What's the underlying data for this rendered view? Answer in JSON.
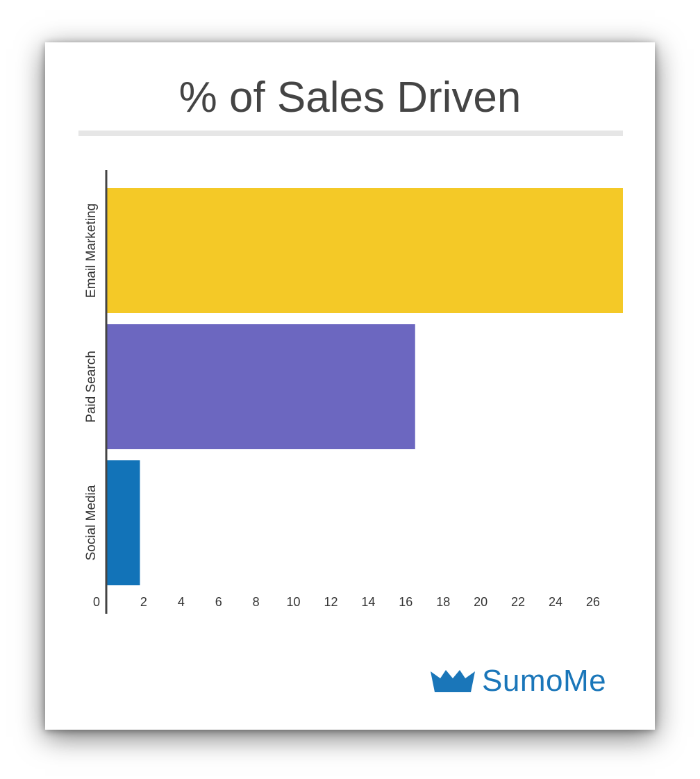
{
  "chart_data": {
    "type": "bar",
    "orientation": "horizontal",
    "title": "% of Sales Driven",
    "categories": [
      "Email Marketing",
      "Paid Search",
      "Social Media"
    ],
    "values": [
      27.6,
      16.5,
      1.8
    ],
    "colors": [
      "#f4c927",
      "#6c67c0",
      "#1273b8"
    ],
    "xticks": [
      0,
      2,
      4,
      6,
      8,
      10,
      12,
      14,
      16,
      18,
      20,
      22,
      24,
      26
    ],
    "xlim": [
      0,
      27.6
    ],
    "grid": false,
    "legend": false
  },
  "brand": {
    "logo_text": "SumoMe",
    "logo_icon": "crown-icon",
    "color": "#1a76b9"
  }
}
